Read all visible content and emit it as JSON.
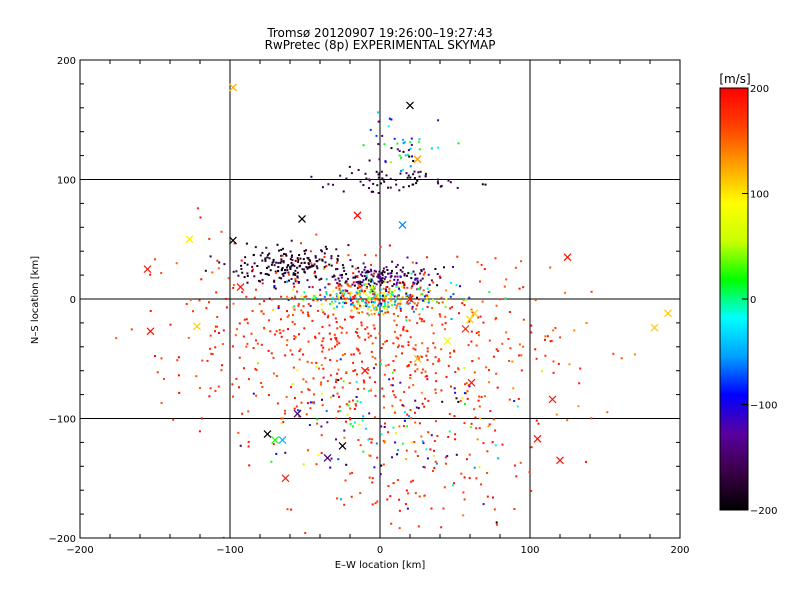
{
  "chart_data": {
    "type": "scatter",
    "title": "Tromsø 20120907 19:26:00–19:27:43",
    "subtitle": "RwPretec (8p) EXPERIMENTAL SKYMAP",
    "xlabel": "E–W location [km]",
    "ylabel": "N–S location [km]",
    "xlim": [
      -200,
      200
    ],
    "ylim": [
      -200,
      200
    ],
    "xticks": [
      -200,
      -100,
      0,
      100,
      200
    ],
    "yticks": [
      -200,
      -100,
      0,
      100,
      200
    ],
    "grid": true,
    "marker_note": "dots = velocity points; x = larger markers",
    "colorbar": {
      "label": "[m/s]",
      "range": [
        -200,
        200
      ],
      "ticks": [
        200,
        100,
        0,
        -100,
        -200
      ],
      "colorscale": [
        "#000000",
        "#3b0048",
        "#5a00a0",
        "#0000ff",
        "#00a0ff",
        "#00ffff",
        "#00ff00",
        "#c8ff00",
        "#ffff00",
        "#ffa000",
        "#ff4000",
        "#ff0000"
      ]
    },
    "clusters": [
      {
        "name": "north-top",
        "cx": 15,
        "cy": 130,
        "sx": 12,
        "sy": 10,
        "n": 45,
        "v": [
          -200,
          50
        ]
      },
      {
        "name": "north-band",
        "cx": 5,
        "cy": 100,
        "sx": 25,
        "sy": 5,
        "n": 70,
        "v": [
          -200,
          -150
        ]
      },
      {
        "name": "nw-dark",
        "cx": -60,
        "cy": 28,
        "sx": 20,
        "sy": 8,
        "n": 200,
        "v": [
          -200,
          -160
        ]
      },
      {
        "name": "center-dark",
        "cx": 5,
        "cy": 18,
        "sx": 18,
        "sy": 6,
        "n": 170,
        "v": [
          -200,
          -120
        ]
      },
      {
        "name": "center-core",
        "cx": -5,
        "cy": 0,
        "sx": 25,
        "sy": 7,
        "n": 320,
        "v": [
          -120,
          200
        ]
      },
      {
        "name": "south-red",
        "cx": -5,
        "cy": -40,
        "sx": 50,
        "sy": 35,
        "n": 520,
        "v": [
          150,
          200
        ]
      },
      {
        "name": "south-mixed",
        "cx": 0,
        "cy": -105,
        "sx": 40,
        "sy": 30,
        "n": 140,
        "v": [
          -200,
          200
        ]
      },
      {
        "name": "south-far",
        "cx": 25,
        "cy": -150,
        "sx": 45,
        "sy": 25,
        "n": 90,
        "v": [
          160,
          200
        ]
      },
      {
        "name": "scatter-west",
        "cx": -110,
        "cy": -20,
        "sx": 30,
        "sy": 40,
        "n": 70,
        "v": [
          150,
          200
        ]
      },
      {
        "name": "scatter-east",
        "cx": 90,
        "cy": -60,
        "sx": 40,
        "sy": 40,
        "n": 60,
        "v": [
          130,
          200
        ]
      }
    ],
    "cross_markers": [
      {
        "x": -98,
        "y": 177,
        "v": 120
      },
      {
        "x": 20,
        "y": 162,
        "v": -200
      },
      {
        "x": 25,
        "y": 117,
        "v": 130
      },
      {
        "x": -15,
        "y": 70,
        "v": 200
      },
      {
        "x": -52,
        "y": 67,
        "v": -200
      },
      {
        "x": 15,
        "y": 62,
        "v": -60
      },
      {
        "x": -127,
        "y": 50,
        "v": 100
      },
      {
        "x": -98,
        "y": 49,
        "v": -200
      },
      {
        "x": -155,
        "y": 25,
        "v": 190
      },
      {
        "x": 125,
        "y": 35,
        "v": 190
      },
      {
        "x": -93,
        "y": 10,
        "v": 190
      },
      {
        "x": -153,
        "y": -27,
        "v": 190
      },
      {
        "x": -122,
        "y": -23,
        "v": 110
      },
      {
        "x": 63,
        "y": -12,
        "v": 110
      },
      {
        "x": 60,
        "y": -17,
        "v": 110
      },
      {
        "x": 183,
        "y": -24,
        "v": 110
      },
      {
        "x": 192,
        "y": -12,
        "v": 110
      },
      {
        "x": 57,
        "y": -25,
        "v": 180
      },
      {
        "x": 115,
        "y": -84,
        "v": 190
      },
      {
        "x": 61,
        "y": -70,
        "v": 190
      },
      {
        "x": 120,
        "y": -135,
        "v": 190
      },
      {
        "x": 105,
        "y": -117,
        "v": 190
      },
      {
        "x": -70,
        "y": -118,
        "v": 20
      },
      {
        "x": -65,
        "y": -118,
        "v": -50
      },
      {
        "x": -75,
        "y": -113,
        "v": -200
      },
      {
        "x": -55,
        "y": -96,
        "v": -150
      },
      {
        "x": -25,
        "y": -123,
        "v": -200
      },
      {
        "x": -35,
        "y": -133,
        "v": -150
      },
      {
        "x": -63,
        "y": -150,
        "v": 190
      },
      {
        "x": 25,
        "y": -50,
        "v": 120
      },
      {
        "x": -10,
        "y": -60,
        "v": 190
      },
      {
        "x": 45,
        "y": -35,
        "v": 80
      },
      {
        "x": 20,
        "y": 0,
        "v": 200
      },
      {
        "x": -5,
        "y": 8,
        "v": 40
      }
    ]
  }
}
